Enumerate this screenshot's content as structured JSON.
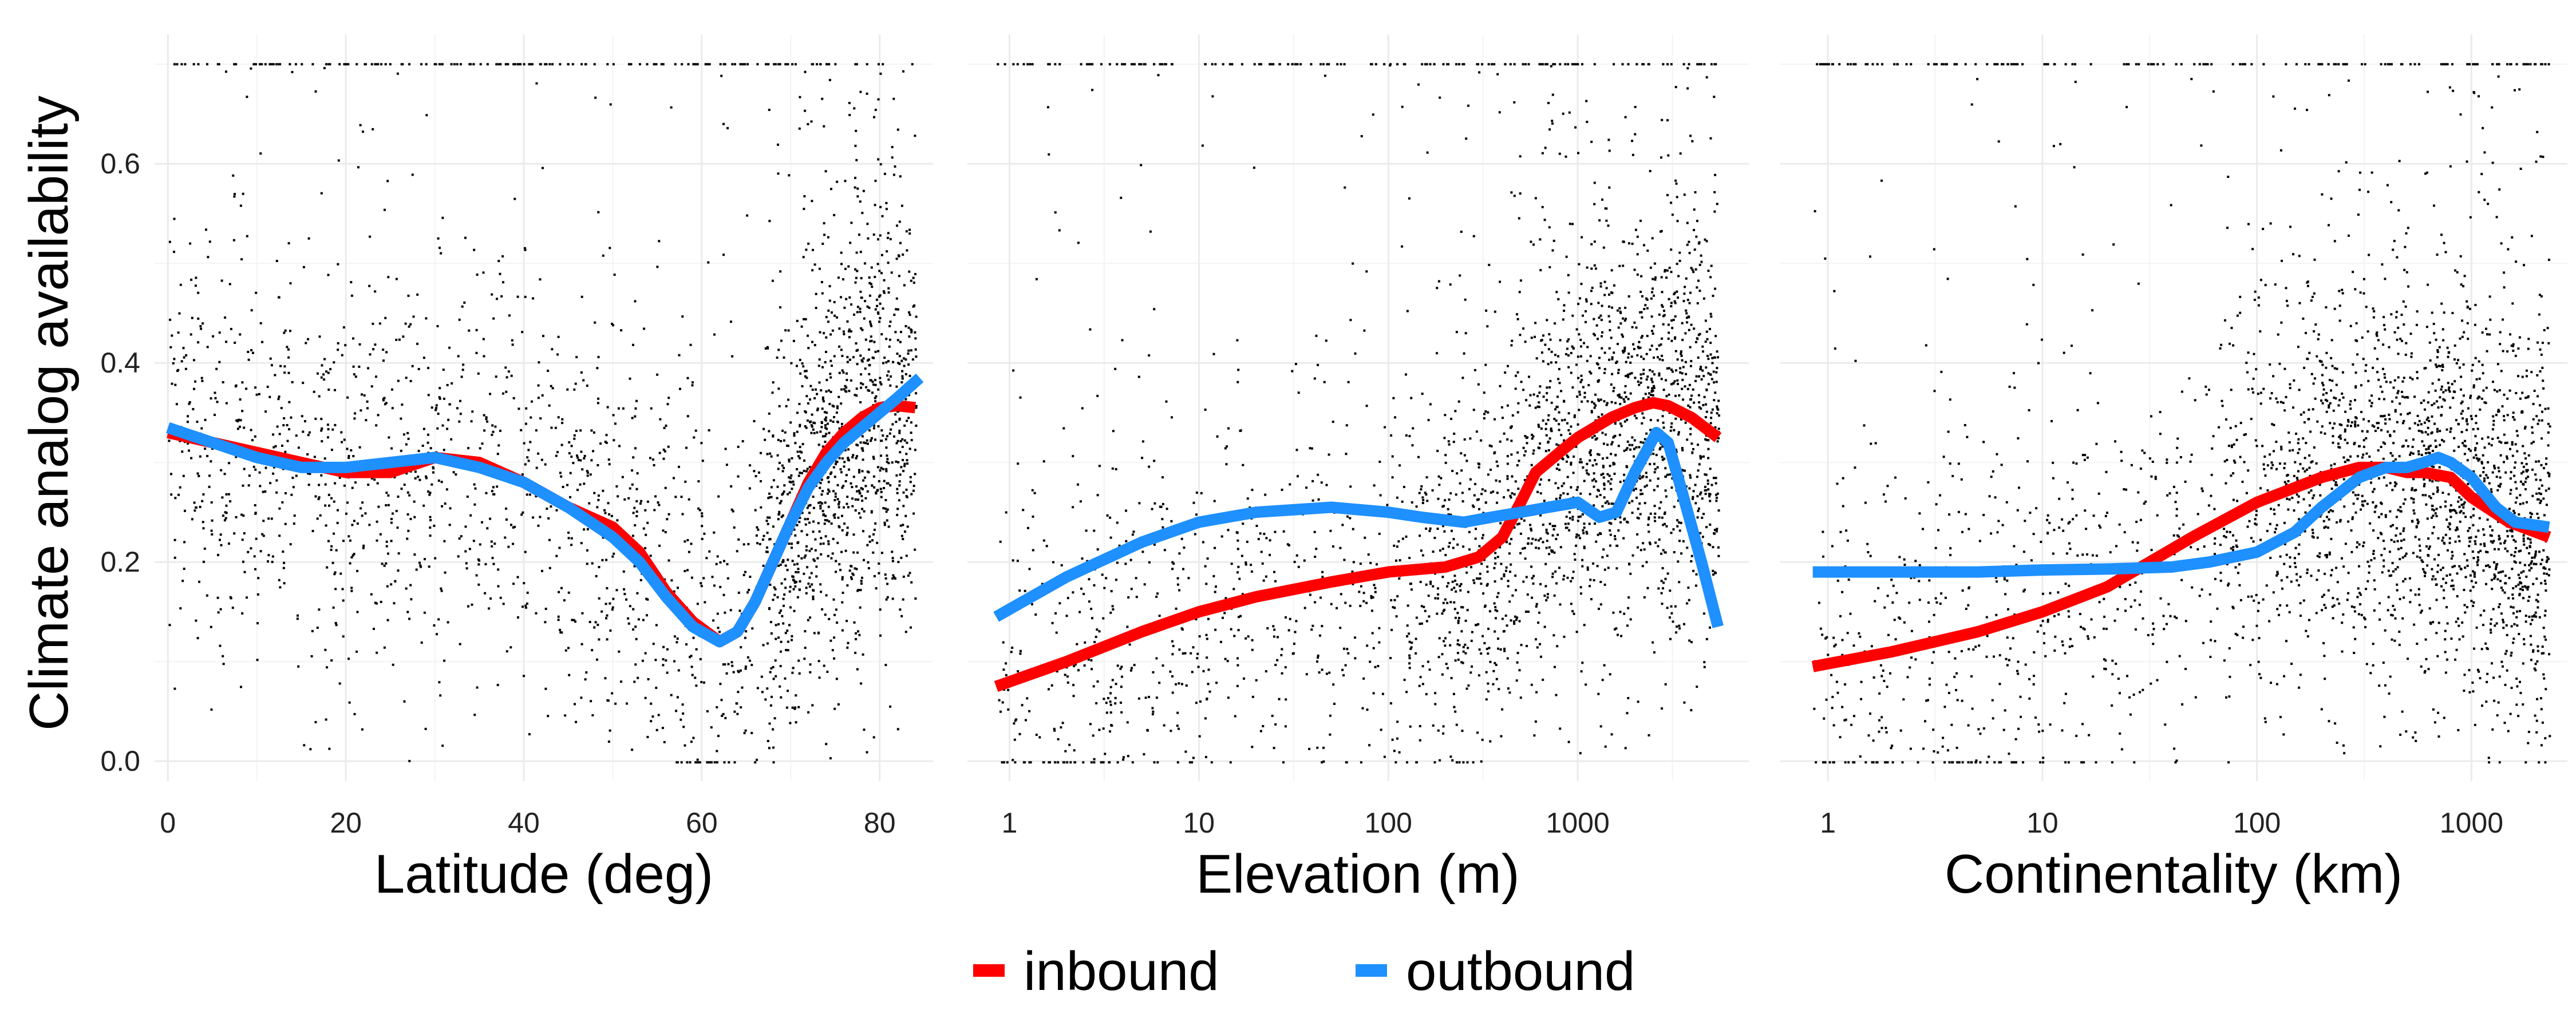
{
  "y_title": "Climate analog availability",
  "legend": {
    "placement": "bottom",
    "items": [
      {
        "label": "inbound",
        "color": "#ff0000"
      },
      {
        "label": "outbound",
        "color": "#1e90ff"
      }
    ]
  },
  "chart_data": [
    {
      "type": "scatter",
      "xlabel": "Latitude (deg)",
      "ylabel": "Climate analog availability",
      "x_scale": "linear",
      "xlim": [
        -1.5,
        86
      ],
      "ylim": [
        -0.02,
        0.73
      ],
      "x_ticks": [
        0,
        20,
        40,
        60,
        80
      ],
      "x_tick_labels": [
        "0",
        "20",
        "40",
        "60",
        "80"
      ],
      "y_ticks": [
        0.0,
        0.2,
        0.4,
        0.6
      ],
      "y_tick_labels": [
        "0.0",
        "0.2",
        "0.4",
        "0.6"
      ],
      "grid": true,
      "series": [
        {
          "name": "inbound",
          "color": "#ff0000",
          "x": [
            0,
            5,
            10,
            15,
            20,
            25,
            30,
            35,
            40,
            45,
            50,
            53,
            56,
            59,
            62,
            64,
            66,
            68,
            70,
            72,
            74,
            76,
            78,
            80,
            82,
            84
          ],
          "y": [
            0.33,
            0.32,
            0.31,
            0.3,
            0.29,
            0.29,
            0.305,
            0.3,
            0.28,
            0.255,
            0.235,
            0.21,
            0.17,
            0.14,
            0.12,
            0.13,
            0.16,
            0.2,
            0.24,
            0.28,
            0.31,
            0.33,
            0.345,
            0.355,
            0.357,
            0.355
          ]
        },
        {
          "name": "outbound",
          "color": "#1e90ff",
          "x": [
            0,
            5,
            10,
            15,
            20,
            25,
            30,
            35,
            40,
            45,
            50,
            53,
            56,
            59,
            62,
            64,
            66,
            68,
            70,
            72,
            74,
            76,
            78,
            80,
            82,
            84.5
          ],
          "y": [
            0.335,
            0.32,
            0.305,
            0.295,
            0.295,
            0.3,
            0.305,
            0.295,
            0.28,
            0.255,
            0.225,
            0.2,
            0.165,
            0.135,
            0.12,
            0.13,
            0.16,
            0.2,
            0.24,
            0.275,
            0.3,
            0.32,
            0.335,
            0.35,
            0.365,
            0.385
          ]
        }
      ]
    },
    {
      "type": "scatter",
      "xlabel": "Elevation (m)",
      "ylabel": "Climate analog availability",
      "x_scale": "log10",
      "xlim": [
        0.6,
        8000
      ],
      "ylim": [
        -0.02,
        0.73
      ],
      "x_ticks": [
        1,
        10,
        100,
        1000
      ],
      "x_tick_labels": [
        "1",
        "10",
        "100",
        "1000"
      ],
      "y_ticks": [
        0.0,
        0.2,
        0.4,
        0.6
      ],
      "y_tick_labels": [
        "0.0",
        "0.2",
        "0.4",
        "0.6"
      ],
      "grid": true,
      "series": [
        {
          "name": "inbound",
          "color": "#ff0000",
          "x": [
            0.85,
            2,
            5,
            10,
            20,
            50,
            100,
            200,
            300,
            400,
            500,
            600,
            800,
            1000,
            1500,
            2000,
            2500,
            3000,
            4000,
            5500
          ],
          "y": [
            0.075,
            0.1,
            0.13,
            0.15,
            0.165,
            0.18,
            0.19,
            0.195,
            0.205,
            0.225,
            0.26,
            0.29,
            0.31,
            0.325,
            0.345,
            0.355,
            0.36,
            0.357,
            0.345,
            0.325
          ]
        },
        {
          "name": "outbound",
          "color": "#1e90ff",
          "x": [
            0.85,
            2,
            5,
            10,
            20,
            50,
            100,
            150,
            250,
            350,
            500,
            700,
            1000,
            1300,
            1600,
            2000,
            2600,
            3000,
            3500,
            4500,
            5500
          ],
          "y": [
            0.145,
            0.185,
            0.22,
            0.24,
            0.25,
            0.255,
            0.25,
            0.245,
            0.24,
            0.245,
            0.25,
            0.255,
            0.26,
            0.245,
            0.25,
            0.29,
            0.33,
            0.32,
            0.275,
            0.2,
            0.135
          ]
        }
      ]
    },
    {
      "type": "scatter",
      "xlabel": "Continentality (km)",
      "ylabel": "Climate analog availability",
      "x_scale": "log10",
      "xlim": [
        0.6,
        2800
      ],
      "ylim": [
        -0.02,
        0.73
      ],
      "x_ticks": [
        1,
        10,
        100,
        1000
      ],
      "x_tick_labels": [
        "1",
        "10",
        "100",
        "1000"
      ],
      "y_ticks": [
        0.0,
        0.2,
        0.4,
        0.6
      ],
      "y_tick_labels": [
        "0.0",
        "0.2",
        "0.4",
        "0.6"
      ],
      "grid": true,
      "series": [
        {
          "name": "inbound",
          "color": "#ff0000",
          "x": [
            0.85,
            2,
            5,
            10,
            20,
            50,
            100,
            200,
            300,
            400,
            500,
            600,
            800,
            1000,
            1500,
            2300
          ],
          "y": [
            0.095,
            0.11,
            0.13,
            0.15,
            0.175,
            0.225,
            0.26,
            0.285,
            0.295,
            0.295,
            0.29,
            0.29,
            0.285,
            0.265,
            0.24,
            0.225
          ]
        },
        {
          "name": "outbound",
          "color": "#1e90ff",
          "x": [
            0.85,
            2,
            5,
            10,
            20,
            40,
            60,
            100,
            150,
            200,
            300,
            400,
            500,
            600,
            700,
            800,
            1000,
            1300,
            1600,
            2300
          ],
          "y": [
            0.19,
            0.19,
            0.19,
            0.192,
            0.193,
            0.195,
            0.2,
            0.21,
            0.23,
            0.255,
            0.285,
            0.295,
            0.295,
            0.3,
            0.305,
            0.3,
            0.285,
            0.255,
            0.24,
            0.235
          ]
        }
      ]
    }
  ]
}
